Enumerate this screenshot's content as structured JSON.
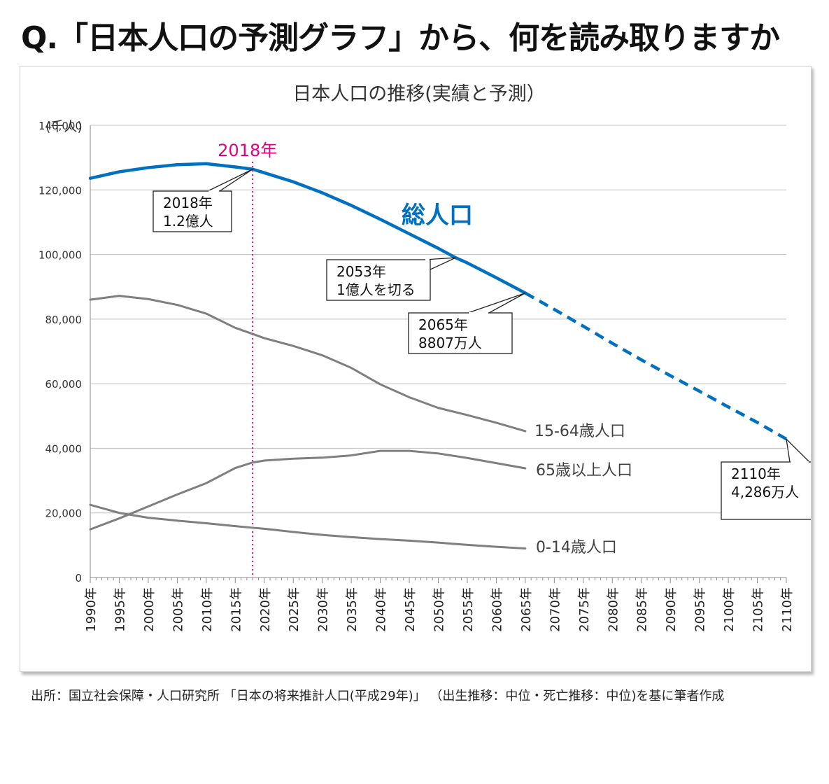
{
  "question": "Q.「日本人口の予測グラフ」から、何を読み取りますか",
  "source": "出所：国立社会保障・人口研究所 「日本の将来推計人口(平成29年)」 （出生推移：中位・死亡推移：中位)を基に筆者作成",
  "chart_data": {
    "type": "line",
    "title": "日本人口の推移(実績と予測）",
    "unit_label": "(千人)",
    "ylim": [
      0,
      140000
    ],
    "y_ticks": [
      0,
      20000,
      40000,
      60000,
      80000,
      100000,
      120000,
      140000
    ],
    "y_tick_labels": [
      "0",
      "20,000",
      "40,000",
      "60,000",
      "80,000",
      "100,000",
      "120,000",
      "140,000"
    ],
    "xlim": [
      1990,
      2110
    ],
    "x_tick_years": [
      1990,
      1995,
      2000,
      2005,
      2010,
      2015,
      2020,
      2025,
      2030,
      2035,
      2040,
      2045,
      2050,
      2055,
      2060,
      2065,
      2070,
      2075,
      2080,
      2085,
      2090,
      2095,
      2100,
      2105,
      2110
    ],
    "x_tick_labels": [
      "1990年",
      "1995年",
      "2000年",
      "2005年",
      "2010年",
      "2015年",
      "2020年",
      "2025年",
      "2030年",
      "2035年",
      "2040年",
      "2045年",
      "2050年",
      "2055年",
      "2060年",
      "2065年",
      "2070年",
      "2075年",
      "2080年",
      "2085年",
      "2090年",
      "2095年",
      "2100年",
      "2105年",
      "2110年"
    ],
    "grid": true,
    "marker_line": {
      "x": 2018,
      "label": "2018年",
      "color": "#e4007f"
    },
    "series": [
      {
        "name": "総人口",
        "color": "#0070c0",
        "x": [
          1990,
          1995,
          2000,
          2005,
          2010,
          2015,
          2018,
          2020,
          2025,
          2030,
          2035,
          2040,
          2045,
          2050,
          2053,
          2055,
          2060,
          2065,
          2070,
          2075,
          2080,
          2085,
          2090,
          2095,
          2100,
          2105,
          2110
        ],
        "values": [
          123600,
          125600,
          126900,
          127800,
          128100,
          127100,
          126400,
          125300,
          122500,
          119100,
          115200,
          110900,
          106400,
          101900,
          99000,
          97400,
          92800,
          88070,
          83000,
          77800,
          72500,
          67400,
          62500,
          57700,
          52800,
          48000,
          42860
        ],
        "forecast_from": 2065
      },
      {
        "name": "15-64歳人口",
        "color": "#7f7f7f",
        "x": [
          1990,
          1995,
          2000,
          2005,
          2010,
          2015,
          2018,
          2020,
          2025,
          2030,
          2035,
          2040,
          2045,
          2050,
          2055,
          2060,
          2065
        ],
        "values": [
          86000,
          87200,
          86200,
          84400,
          81700,
          77300,
          75400,
          74100,
          71700,
          68800,
          64900,
          59800,
          55800,
          52500,
          50300,
          47900,
          45300
        ]
      },
      {
        "name": "65歳以上人口",
        "color": "#7f7f7f",
        "x": [
          1990,
          1995,
          2000,
          2005,
          2010,
          2015,
          2018,
          2020,
          2025,
          2030,
          2035,
          2040,
          2045,
          2050,
          2055,
          2060,
          2065
        ],
        "values": [
          14900,
          18300,
          22000,
          25700,
          29200,
          33900,
          35600,
          36200,
          36800,
          37100,
          37800,
          39200,
          39200,
          38400,
          37000,
          35400,
          33800
        ]
      },
      {
        "name": "0-14歳人口",
        "color": "#7f7f7f",
        "x": [
          1990,
          1995,
          2000,
          2005,
          2010,
          2015,
          2018,
          2020,
          2025,
          2030,
          2035,
          2040,
          2045,
          2050,
          2055,
          2060,
          2065
        ],
        "values": [
          22500,
          20000,
          18500,
          17600,
          16800,
          15900,
          15400,
          15100,
          14100,
          13200,
          12500,
          11900,
          11400,
          10800,
          10100,
          9500,
          8980
        ]
      }
    ],
    "annotations": [
      {
        "x": 2018,
        "y": 126400,
        "lines": [
          "2018年",
          "1.2億人"
        ]
      },
      {
        "x": 2053,
        "y": 99000,
        "lines": [
          "2053年",
          "1億人を切る"
        ]
      },
      {
        "x": 2065,
        "y": 88070,
        "lines": [
          "2065年",
          "8807万人"
        ]
      },
      {
        "x": 2110,
        "y": 42860,
        "lines": [
          "2110年",
          "4,286万人"
        ]
      }
    ]
  }
}
